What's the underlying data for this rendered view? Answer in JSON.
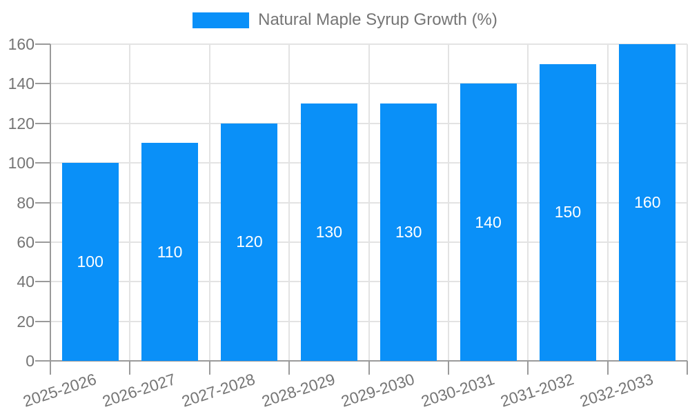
{
  "legend": {
    "label": "Natural Maple Syrup Growth (%)"
  },
  "colors": {
    "bar": "#0a90f8",
    "axis": "#9a9a9a",
    "grid": "#e3e3e3",
    "text": "#757575",
    "value_label": "#ffffff",
    "background": "#ffffff"
  },
  "chart_data": {
    "type": "bar",
    "title": "",
    "xlabel": "",
    "ylabel": "",
    "categories": [
      "2025-2026",
      "2026-2027",
      "2027-2028",
      "2028-2029",
      "2029-2030",
      "2030-2031",
      "2031-2032",
      "2032-2033"
    ],
    "values": [
      100,
      110,
      120,
      130,
      130,
      140,
      150,
      160
    ],
    "series_name": "Natural Maple Syrup Growth (%)",
    "ylim": [
      0,
      160
    ],
    "yticks": [
      0,
      20,
      40,
      60,
      80,
      100,
      120,
      140,
      160
    ],
    "grid": true,
    "legend_position": "top-center",
    "value_labels": "inside-center",
    "x_label_rotation_deg": -18
  }
}
